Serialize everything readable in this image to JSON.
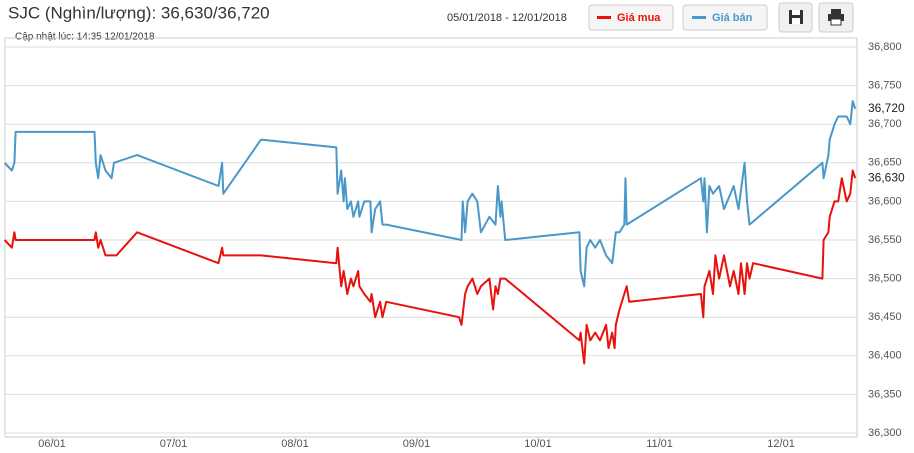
{
  "chart_data": {
    "type": "line",
    "title": "SJC (Nghìn/lượng): 36,630/36,720",
    "subtitle": "Cập nhật lúc: 14:35 12/01/2018",
    "date_range": "05/01/2018 - 12/01/2018",
    "xlim": [
      5.613,
      12.625
    ],
    "xticks": [
      {
        "value": 6,
        "label": "06/01"
      },
      {
        "value": 7,
        "label": "07/01"
      },
      {
        "value": 8,
        "label": "08/01"
      },
      {
        "value": 9,
        "label": "09/01"
      },
      {
        "value": 10,
        "label": "10/01"
      },
      {
        "value": 11,
        "label": "11/01"
      },
      {
        "value": 12,
        "label": "12/01"
      }
    ],
    "ylim": [
      36300,
      36800
    ],
    "yticks": [
      {
        "value": 36300,
        "label": "36,300"
      },
      {
        "value": 36350,
        "label": "36,350"
      },
      {
        "value": 36400,
        "label": "36,400"
      },
      {
        "value": 36450,
        "label": "36,450"
      },
      {
        "value": 36500,
        "label": "36,500"
      },
      {
        "value": 36550,
        "label": "36,550"
      },
      {
        "value": 36600,
        "label": "36,600"
      },
      {
        "value": 36650,
        "label": "36,650"
      },
      {
        "value": 36700,
        "label": "36,700"
      },
      {
        "value": 36750,
        "label": "36,750"
      },
      {
        "value": 36800,
        "label": "36,800"
      }
    ],
    "grid": true,
    "series": [
      {
        "name": "Giá mua",
        "color": "#e8120c",
        "current_label": "36,630",
        "x": [
          5.61,
          5.67,
          5.69,
          5.7,
          6.35,
          6.36,
          6.38,
          6.4,
          6.44,
          6.53,
          6.7,
          7.37,
          7.4,
          7.41,
          7.72,
          8.34,
          8.35,
          8.38,
          8.4,
          8.43,
          8.46,
          8.48,
          8.52,
          8.53,
          8.57,
          8.62,
          8.63,
          8.66,
          8.7,
          8.72,
          8.75,
          9.35,
          9.37,
          9.4,
          9.42,
          9.46,
          9.5,
          9.53,
          9.6,
          9.63,
          9.65,
          9.67,
          9.69,
          9.73,
          10.34,
          10.35,
          10.38,
          10.4,
          10.43,
          10.47,
          10.51,
          10.56,
          10.58,
          10.61,
          10.63,
          10.64,
          10.67,
          10.71,
          10.73,
          10.75,
          11.34,
          11.36,
          11.37,
          11.41,
          11.44,
          11.46,
          11.49,
          11.53,
          11.58,
          11.61,
          11.65,
          11.67,
          11.7,
          11.72,
          11.74,
          11.77,
          12.34,
          12.35,
          12.39,
          12.4,
          12.44,
          12.47,
          12.5,
          12.54,
          12.57,
          12.59,
          12.61
        ],
        "values": [
          36550,
          36540,
          36560,
          36550,
          36550,
          36560,
          36540,
          36550,
          36530,
          36530,
          36560,
          36520,
          36540,
          36530,
          36530,
          36520,
          36540,
          36490,
          36510,
          36480,
          36500,
          36490,
          36510,
          36490,
          36480,
          36470,
          36480,
          36450,
          36470,
          36450,
          36470,
          36450,
          36440,
          36480,
          36490,
          36500,
          36480,
          36490,
          36500,
          36460,
          36490,
          36480,
          36500,
          36500,
          36420,
          36430,
          36390,
          36440,
          36420,
          36430,
          36420,
          36440,
          36410,
          36430,
          36410,
          36440,
          36460,
          36480,
          36490,
          36470,
          36480,
          36450,
          36490,
          36510,
          36480,
          36530,
          36500,
          36530,
          36490,
          36510,
          36480,
          36520,
          36480,
          36520,
          36500,
          36520,
          36500,
          36550,
          36560,
          36580,
          36600,
          36600,
          36630,
          36600,
          36610,
          36640,
          36630
        ]
      },
      {
        "name": "Giá bán",
        "color": "#4a98c9",
        "current_label": "36,720",
        "x": [
          5.61,
          5.67,
          5.69,
          5.7,
          6.35,
          6.36,
          6.38,
          6.4,
          6.44,
          6.49,
          6.51,
          6.7,
          7.37,
          7.4,
          7.41,
          7.72,
          8.34,
          8.35,
          8.38,
          8.4,
          8.41,
          8.43,
          8.46,
          8.48,
          8.52,
          8.53,
          8.57,
          8.62,
          8.63,
          8.66,
          8.7,
          8.72,
          8.75,
          9.37,
          9.38,
          9.4,
          9.42,
          9.46,
          9.5,
          9.53,
          9.6,
          9.65,
          9.67,
          9.69,
          9.7,
          9.73,
          10.34,
          10.35,
          10.38,
          10.4,
          10.43,
          10.47,
          10.51,
          10.56,
          10.61,
          10.64,
          10.67,
          10.71,
          10.72,
          10.73,
          11.34,
          11.36,
          11.37,
          11.39,
          11.41,
          11.44,
          11.49,
          11.53,
          11.61,
          11.65,
          11.7,
          11.72,
          11.74,
          12.34,
          12.35,
          12.39,
          12.4,
          12.44,
          12.47,
          12.5,
          12.54,
          12.57,
          12.59,
          12.61
        ],
        "values": [
          36650,
          36640,
          36650,
          36690,
          36690,
          36650,
          36630,
          36660,
          36640,
          36630,
          36650,
          36660,
          36620,
          36650,
          36610,
          36680,
          36670,
          36610,
          36640,
          36600,
          36630,
          36590,
          36600,
          36580,
          36600,
          36580,
          36600,
          36600,
          36560,
          36590,
          36600,
          36570,
          36570,
          36550,
          36600,
          36560,
          36600,
          36610,
          36600,
          36560,
          36580,
          36570,
          36620,
          36580,
          36600,
          36550,
          36560,
          36510,
          36490,
          36540,
          36550,
          36540,
          36550,
          36530,
          36520,
          36560,
          36560,
          36570,
          36630,
          36570,
          36630,
          36600,
          36630,
          36560,
          36620,
          36610,
          36620,
          36590,
          36620,
          36590,
          36650,
          36600,
          36570,
          36650,
          36630,
          36660,
          36680,
          36700,
          36710,
          36710,
          36710,
          36700,
          36730,
          36720
        ]
      }
    ]
  }
}
